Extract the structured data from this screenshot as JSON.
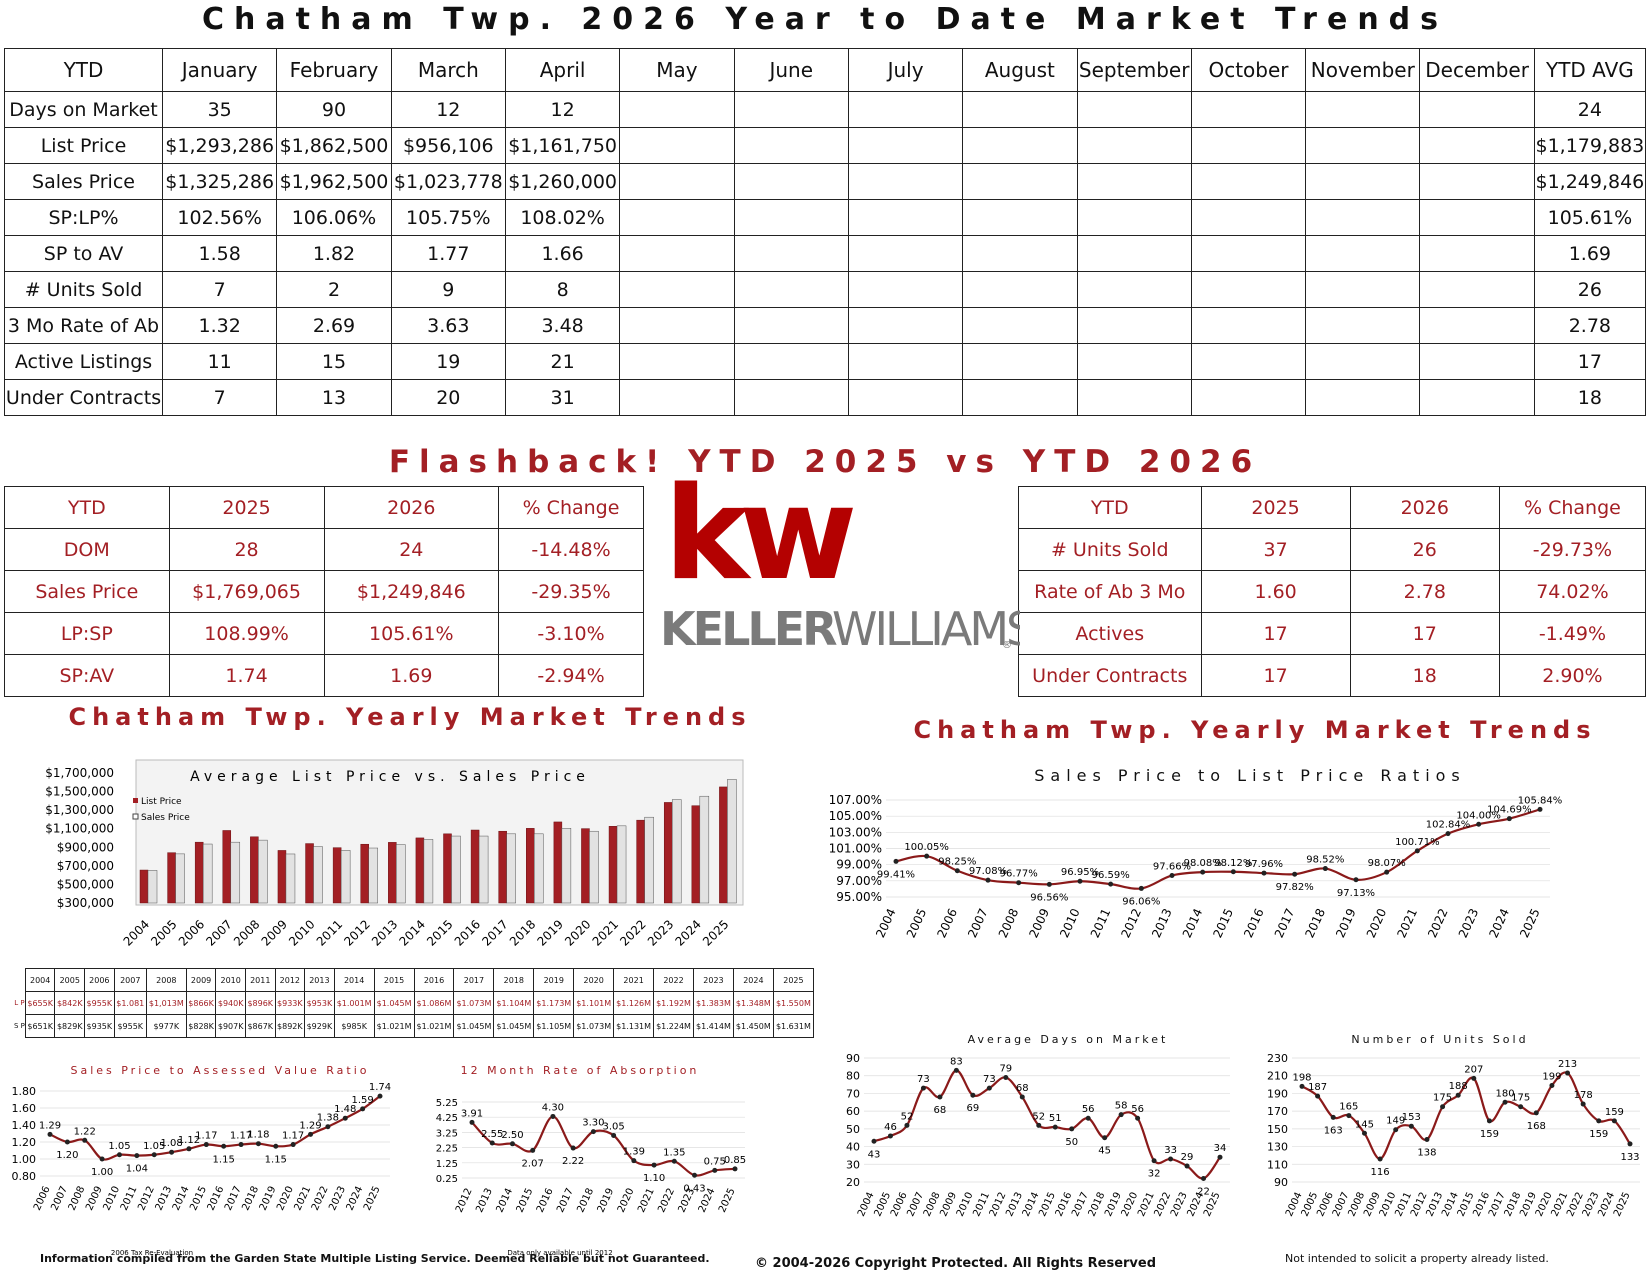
{
  "title": "Chatham Twp. 2026 Year to Date Market Trends",
  "ytd_table": {
    "headers": [
      "YTD",
      "January",
      "February",
      "March",
      "April",
      "May",
      "June",
      "July",
      "August",
      "September",
      "October",
      "November",
      "December",
      "YTD AVG"
    ],
    "rows": [
      {
        "label": "Days on Market",
        "values": [
          "35",
          "90",
          "12",
          "12",
          "",
          "",
          "",
          "",
          "",
          "",
          "",
          ""
        ],
        "avg": "24"
      },
      {
        "label": "List Price",
        "values": [
          "$1,293,286",
          "$1,862,500",
          "$956,106",
          "$1,161,750",
          "",
          "",
          "",
          "",
          "",
          "",
          "",
          ""
        ],
        "avg": "$1,179,883"
      },
      {
        "label": "Sales Price",
        "values": [
          "$1,325,286",
          "$1,962,500",
          "$1,023,778",
          "$1,260,000",
          "",
          "",
          "",
          "",
          "",
          "",
          "",
          ""
        ],
        "avg": "$1,249,846"
      },
      {
        "label": "SP:LP%",
        "values": [
          "102.56%",
          "106.06%",
          "105.75%",
          "108.02%",
          "",
          "",
          "",
          "",
          "",
          "",
          "",
          ""
        ],
        "avg": "105.61%"
      },
      {
        "label": "SP to AV",
        "values": [
          "1.58",
          "1.82",
          "1.77",
          "1.66",
          "",
          "",
          "",
          "",
          "",
          "",
          "",
          ""
        ],
        "avg": "1.69"
      },
      {
        "label": "# Units Sold",
        "values": [
          "7",
          "2",
          "9",
          "8",
          "",
          "",
          "",
          "",
          "",
          "",
          "",
          ""
        ],
        "avg": "26"
      },
      {
        "label": "3 Mo Rate of Ab",
        "values": [
          "1.32",
          "2.69",
          "3.63",
          "3.48",
          "",
          "",
          "",
          "",
          "",
          "",
          "",
          ""
        ],
        "avg": "2.78"
      },
      {
        "label": "Active Listings",
        "values": [
          "11",
          "15",
          "19",
          "21",
          "",
          "",
          "",
          "",
          "",
          "",
          "",
          ""
        ],
        "avg": "17"
      },
      {
        "label": "Under Contracts",
        "values": [
          "7",
          "13",
          "20",
          "31",
          "",
          "",
          "",
          "",
          "",
          "",
          "",
          ""
        ],
        "avg": "18"
      }
    ]
  },
  "flashback_title": "Flashback! YTD 2025 vs YTD 2026",
  "compare_left": {
    "headers": [
      "YTD",
      "2025",
      "2026",
      "% Change"
    ],
    "rows": [
      [
        "DOM",
        "28",
        "24",
        "-14.48%"
      ],
      [
        "Sales Price",
        "$1,769,065",
        "$1,249,846",
        "-29.35%"
      ],
      [
        "LP:SP",
        "108.99%",
        "105.61%",
        "-3.10%"
      ],
      [
        "SP:AV",
        "1.74",
        "1.69",
        "-2.94%"
      ]
    ]
  },
  "compare_right": {
    "headers": [
      "YTD",
      "2025",
      "2026",
      "% Change"
    ],
    "rows": [
      [
        "# Units Sold",
        "37",
        "26",
        "-29.73%"
      ],
      [
        "Rate of Ab 3 Mo",
        "1.60",
        "2.78",
        "74.02%"
      ],
      [
        "Actives",
        "17",
        "17",
        "-1.49%"
      ],
      [
        "Under Contracts",
        "17",
        "18",
        "2.90%"
      ]
    ]
  },
  "logo": {
    "mark": "kw",
    "word1": "KELLER",
    "word2": "WILLIAMS",
    "reg": "®",
    "red": "#b40101",
    "grey": "#7a7a7a"
  },
  "left_section_title": "Chatham Twp. Yearly Market Trends",
  "right_section_title": "Chatham Twp. Yearly Market Trends",
  "value_table": {
    "years": [
      "2004",
      "2005",
      "2006",
      "2007",
      "2008",
      "2009",
      "2010",
      "2011",
      "2012",
      "2013",
      "2014",
      "2015",
      "2016",
      "2017",
      "2018",
      "2019",
      "2020",
      "2021",
      "2022",
      "2023",
      "2024",
      "2025"
    ],
    "lp": [
      "$655K",
      "$842K",
      "$955K",
      "$1.081",
      "$1,013M",
      "$866K",
      "$940K",
      "$896K",
      "$933K",
      "$953K",
      "$1.001M",
      "$1.045M",
      "$1.086M",
      "$1.073M",
      "$1.104M",
      "$1.173M",
      "$1.101M",
      "$1.126M",
      "$1.192M",
      "$1.383M",
      "$1.348M",
      "$1.550M"
    ],
    "sp": [
      "$651K",
      "$829K",
      "$935K",
      "$955K",
      "$977K",
      "$828K",
      "$907K",
      "$867K",
      "$892K",
      "$929K",
      "$985K",
      "$1.021M",
      "$1.021M",
      "$1.045M",
      "$1.045M",
      "$1.105M",
      "$1.073M",
      "$1.131M",
      "$1.224M",
      "$1.414M",
      "$1.450M",
      "$1.631M"
    ],
    "lp_label": "L P",
    "sp_label": "S P"
  },
  "colors": {
    "red": "#a31f24",
    "grey": "#d4d4d4",
    "line": "#8b1a1a"
  },
  "chart_data": [
    {
      "type": "bar",
      "title": "Average List Price vs. Sales Price",
      "categories": [
        "2004",
        "2005",
        "2006",
        "2007",
        "2008",
        "2009",
        "2010",
        "2011",
        "2012",
        "2013",
        "2014",
        "2015",
        "2016",
        "2017",
        "2018",
        "2019",
        "2020",
        "2021",
        "2022",
        "2023",
        "2024",
        "2025"
      ],
      "series": [
        {
          "name": "List Price",
          "values": [
            655000,
            842000,
            955000,
            1081000,
            1013000,
            866000,
            940000,
            896000,
            933000,
            953000,
            1001000,
            1045000,
            1086000,
            1073000,
            1104000,
            1173000,
            1101000,
            1126000,
            1192000,
            1383000,
            1348000,
            1550000
          ]
        },
        {
          "name": "Sales Price",
          "values": [
            651000,
            829000,
            935000,
            955000,
            977000,
            828000,
            907000,
            867000,
            892000,
            929000,
            985000,
            1021000,
            1021000,
            1045000,
            1045000,
            1105000,
            1073000,
            1131000,
            1224000,
            1414000,
            1450000,
            1631000
          ]
        }
      ],
      "yticks": [
        "$1,700,000",
        "$1,500,000",
        "$1,300,000",
        "$1,100,000",
        "$900,000",
        "$700,000",
        "$500,000",
        "$300,000"
      ],
      "ylim": [
        300000,
        1700000
      ]
    },
    {
      "type": "line",
      "title": "Sales Price to List Price Ratios",
      "x": [
        "2004",
        "2005",
        "2006",
        "2007",
        "2008",
        "2009",
        "2010",
        "2011",
        "2012",
        "2013",
        "2014",
        "2015",
        "2016",
        "2017",
        "2018",
        "2019",
        "2020",
        "2021",
        "2022",
        "2023",
        "2024",
        "2025"
      ],
      "values": [
        99.41,
        100.05,
        98.25,
        97.08,
        96.77,
        96.56,
        96.95,
        96.59,
        96.06,
        97.66,
        98.08,
        98.12,
        97.96,
        97.82,
        98.52,
        97.13,
        98.07,
        100.71,
        102.84,
        104.0,
        104.69,
        105.84
      ],
      "labels": [
        "99.41%",
        "100.05%",
        "98.25%",
        "97.08%",
        "96.77%",
        "96.56%",
        "96.95%",
        "96.59%",
        "96.06%",
        "97.66%",
        "98.08%",
        "98.12%",
        "97.96%",
        "97.82%",
        "98.52%",
        "97.13%",
        "98.07%",
        "100.71%",
        "102.84%",
        "104.00%",
        "104.69%",
        "105.84%"
      ],
      "yticks": [
        "107.00%",
        "105.00%",
        "103.00%",
        "101.00%",
        "99.00%",
        "97.00%",
        "95.00%"
      ],
      "ylim": [
        95,
        107
      ]
    },
    {
      "type": "line",
      "title": "Sales Price to Assessed Value Ratio",
      "x": [
        "2006",
        "2007",
        "2008",
        "2009",
        "2010",
        "2011",
        "2012",
        "2013",
        "2014",
        "2015",
        "2016",
        "2017",
        "2018",
        "2019",
        "2020",
        "2021",
        "2022",
        "2023",
        "2024",
        "2025"
      ],
      "values": [
        1.29,
        1.2,
        1.22,
        1.0,
        1.05,
        1.04,
        1.05,
        1.08,
        1.12,
        1.17,
        1.15,
        1.17,
        1.18,
        1.15,
        1.17,
        1.29,
        1.38,
        1.48,
        1.59,
        1.74
      ],
      "labels": [
        "1.29",
        "1.20",
        "1.22",
        "1.00",
        "1.05",
        "1.04",
        "1.05",
        "1.08",
        "1.12",
        "1.17",
        "1.15",
        "1.17",
        "1.18",
        "1.15",
        "1.17",
        "1.29",
        "1.38",
        "1.48",
        "1.59",
        "1.74"
      ],
      "yticks": [
        "1.80",
        "1.60",
        "1.40",
        "1.20",
        "1.00",
        "0.80"
      ],
      "ylim": [
        0.8,
        1.8
      ],
      "note": "2006 Tax Re-Evaluation"
    },
    {
      "type": "line",
      "title": "12 Month Rate of Absorption",
      "x": [
        "2012",
        "2013",
        "2014",
        "2015",
        "2016",
        "2017",
        "2018",
        "2019",
        "2020",
        "2021",
        "2022",
        "2023",
        "2024",
        "2025"
      ],
      "values": [
        3.91,
        2.55,
        2.5,
        2.07,
        4.3,
        2.22,
        3.3,
        3.05,
        1.39,
        1.1,
        1.35,
        0.43,
        0.75,
        0.85
      ],
      "labels": [
        "3.91",
        "2.55",
        "2.50",
        "2.07",
        "4.30",
        "2.22",
        "3.30",
        "3.05",
        "1.39",
        "1.10",
        "1.35",
        "0.43",
        "0.75",
        "0.85"
      ],
      "yticks": [
        "5.25",
        "4.25",
        "3.25",
        "2.25",
        "1.25",
        "0.25"
      ],
      "ylim": [
        0.25,
        5.25
      ],
      "note": "Data only available until 2012"
    },
    {
      "type": "line",
      "title": "Average Days on Market",
      "x": [
        "2004",
        "2005",
        "2006",
        "2007",
        "2008",
        "2009",
        "2010",
        "2011",
        "2012",
        "2013",
        "2014",
        "2015",
        "2016",
        "2017",
        "2018",
        "2019",
        "2020",
        "2021",
        "2022",
        "2023",
        "2024",
        "2025"
      ],
      "values": [
        43,
        46,
        52,
        73,
        68,
        83,
        69,
        73,
        79,
        68,
        52,
        51,
        50,
        56,
        45,
        58,
        56,
        32,
        33,
        29,
        22,
        34
      ],
      "labels": [
        "43",
        "46",
        "52",
        "73",
        "68",
        "83",
        "69",
        "73",
        "79",
        "68",
        "52",
        "51",
        "50",
        "56",
        "45",
        "58",
        "56",
        "32",
        "33",
        "29",
        "22",
        "34"
      ],
      "yticks": [
        "90",
        "80",
        "70",
        "60",
        "50",
        "40",
        "30",
        "20"
      ],
      "ylim": [
        20,
        90
      ]
    },
    {
      "type": "line",
      "title": "Number of Units Sold",
      "x": [
        "2004",
        "2005",
        "2006",
        "2007",
        "2008",
        "2009",
        "2010",
        "2011",
        "2012",
        "2013",
        "2014",
        "2015",
        "2016",
        "2017",
        "2018",
        "2019",
        "2020",
        "2021",
        "2022",
        "2023",
        "2024",
        "2025"
      ],
      "values": [
        198,
        187,
        163,
        165,
        145,
        116,
        149,
        153,
        138,
        175,
        188,
        207,
        159,
        180,
        175,
        168,
        199,
        213,
        178,
        159,
        159,
        133
      ],
      "labels": [
        "198",
        "187",
        "163",
        "165",
        "145",
        "116",
        "149",
        "153",
        "138",
        "175",
        "188",
        "207",
        "159",
        "180",
        "175",
        "168",
        "199",
        "213",
        "178",
        "159",
        "159",
        "133"
      ],
      "yticks": [
        "230",
        "210",
        "190",
        "170",
        "150",
        "130",
        "110",
        "90"
      ],
      "ylim": [
        90,
        230
      ]
    }
  ],
  "footer": {
    "left": "Information compiled from the Garden State Multiple Listing Service.  Deemed Reliable but not Guaranteed.",
    "center": "© 2004-2026 Copyright Protected.  All Rights Reserved",
    "right": "Not intended to solicit a property already listed."
  }
}
